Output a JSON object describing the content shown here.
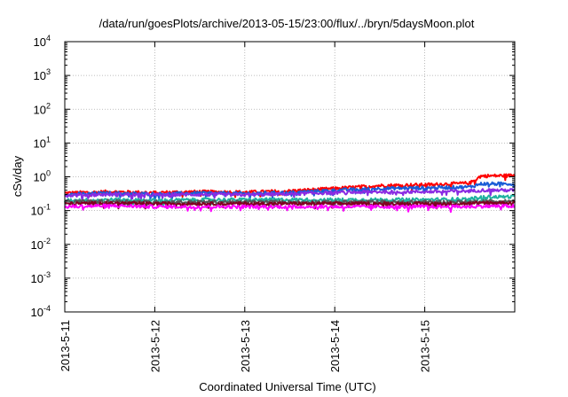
{
  "chart_data": {
    "type": "line",
    "title": "/data/run/goesPlots/archive/2013-05-15/23:00/flux/../bryn/5daysMoon.plot",
    "xlabel": "Coordinated Universal Time (UTC)",
    "ylabel": "cSv/day",
    "xscale": "time",
    "xlim": [
      "2013-05-11",
      "2013-05-16"
    ],
    "ylim": [
      0.0001,
      10000
    ],
    "yscale": "log",
    "grid": true,
    "x_ticks": [
      "2013-5-11",
      "2013-5-12",
      "2013-5-13",
      "2013-5-14",
      "2013-5-15"
    ],
    "y_ticks": [
      {
        "base": "10",
        "exp": "4"
      },
      {
        "base": "10",
        "exp": "3"
      },
      {
        "base": "10",
        "exp": "2"
      },
      {
        "base": "10",
        "exp": "1"
      },
      {
        "base": "10",
        "exp": "0"
      },
      {
        "base": "10",
        "exp": "-1"
      },
      {
        "base": "10",
        "exp": "-2"
      },
      {
        "base": "10",
        "exp": "-3"
      },
      {
        "base": "10",
        "exp": "-4"
      }
    ],
    "series": [
      {
        "color": "#ff0000",
        "values": [
          [
            "2013-05-11",
            0.33
          ],
          [
            "2013-05-11 12:00",
            0.36
          ],
          [
            "2013-05-12",
            0.34
          ],
          [
            "2013-05-12 12:00",
            0.36
          ],
          [
            "2013-05-13",
            0.35
          ],
          [
            "2013-05-13 12:00",
            0.38
          ],
          [
            "2013-05-14",
            0.45
          ],
          [
            "2013-05-14 12:00",
            0.55
          ],
          [
            "2013-05-15",
            0.58
          ],
          [
            "2013-05-15 12:00",
            0.65
          ],
          [
            "2013-05-15 15:00",
            1.05
          ],
          [
            "2013-05-16",
            1.1
          ]
        ]
      },
      {
        "color": "#1a5cd6",
        "values": [
          [
            "2013-05-11",
            0.3
          ],
          [
            "2013-05-11 12:00",
            0.33
          ],
          [
            "2013-05-12",
            0.31
          ],
          [
            "2013-05-12 12:00",
            0.33
          ],
          [
            "2013-05-13",
            0.32
          ],
          [
            "2013-05-13 12:00",
            0.34
          ],
          [
            "2013-05-14",
            0.4
          ],
          [
            "2013-05-14 12:00",
            0.45
          ],
          [
            "2013-05-15",
            0.47
          ],
          [
            "2013-05-15 12:00",
            0.5
          ],
          [
            "2013-05-15 15:00",
            0.62
          ],
          [
            "2013-05-16",
            0.62
          ]
        ]
      },
      {
        "color": "#8a2be2",
        "values": [
          [
            "2013-05-11",
            0.28
          ],
          [
            "2013-05-11 12:00",
            0.3
          ],
          [
            "2013-05-12",
            0.29
          ],
          [
            "2013-05-12 12:00",
            0.3
          ],
          [
            "2013-05-13",
            0.29
          ],
          [
            "2013-05-13 12:00",
            0.31
          ],
          [
            "2013-05-14",
            0.34
          ],
          [
            "2013-05-14 12:00",
            0.36
          ],
          [
            "2013-05-15",
            0.36
          ],
          [
            "2013-05-15 12:00",
            0.38
          ],
          [
            "2013-05-15 15:00",
            0.4
          ],
          [
            "2013-05-16",
            0.4
          ]
        ]
      },
      {
        "color": "#20b2a0",
        "values": [
          [
            "2013-05-11",
            0.2
          ],
          [
            "2013-05-11 12:00",
            0.21
          ],
          [
            "2013-05-12",
            0.2
          ],
          [
            "2013-05-12 12:00",
            0.21
          ],
          [
            "2013-05-13",
            0.21
          ],
          [
            "2013-05-13 12:00",
            0.21
          ],
          [
            "2013-05-14",
            0.21
          ],
          [
            "2013-05-14 12:00",
            0.21
          ],
          [
            "2013-05-15",
            0.21
          ],
          [
            "2013-05-15 12:00",
            0.22
          ],
          [
            "2013-05-15 15:00",
            0.25
          ],
          [
            "2013-05-16",
            0.26
          ]
        ]
      },
      {
        "color": "#555555",
        "values": [
          [
            "2013-05-11",
            0.18
          ],
          [
            "2013-05-11 12:00",
            0.19
          ],
          [
            "2013-05-12",
            0.18
          ],
          [
            "2013-05-12 12:00",
            0.18
          ],
          [
            "2013-05-13",
            0.18
          ],
          [
            "2013-05-13 12:00",
            0.18
          ],
          [
            "2013-05-14",
            0.18
          ],
          [
            "2013-05-14 12:00",
            0.18
          ],
          [
            "2013-05-15",
            0.18
          ],
          [
            "2013-05-15 12:00",
            0.18
          ],
          [
            "2013-05-15 15:00",
            0.19
          ],
          [
            "2013-05-16",
            0.19
          ]
        ]
      },
      {
        "color": "#800020",
        "values": [
          [
            "2013-05-11",
            0.16
          ],
          [
            "2013-05-11 12:00",
            0.165
          ],
          [
            "2013-05-12",
            0.16
          ],
          [
            "2013-05-12 12:00",
            0.16
          ],
          [
            "2013-05-13",
            0.16
          ],
          [
            "2013-05-13 12:00",
            0.16
          ],
          [
            "2013-05-14",
            0.16
          ],
          [
            "2013-05-14 12:00",
            0.16
          ],
          [
            "2013-05-15",
            0.16
          ],
          [
            "2013-05-15 12:00",
            0.16
          ],
          [
            "2013-05-15 15:00",
            0.17
          ],
          [
            "2013-05-16",
            0.17
          ]
        ]
      },
      {
        "color": "#ff00ff",
        "values": [
          [
            "2013-05-11",
            0.13
          ],
          [
            "2013-05-11 12:00",
            0.14
          ],
          [
            "2013-05-12",
            0.13
          ],
          [
            "2013-05-12 12:00",
            0.13
          ],
          [
            "2013-05-13",
            0.13
          ],
          [
            "2013-05-13 12:00",
            0.13
          ],
          [
            "2013-05-14",
            0.13
          ],
          [
            "2013-05-14 12:00",
            0.13
          ],
          [
            "2013-05-15",
            0.13
          ],
          [
            "2013-05-15 12:00",
            0.13
          ],
          [
            "2013-05-15 15:00",
            0.135
          ],
          [
            "2013-05-16",
            0.135
          ]
        ]
      }
    ]
  }
}
